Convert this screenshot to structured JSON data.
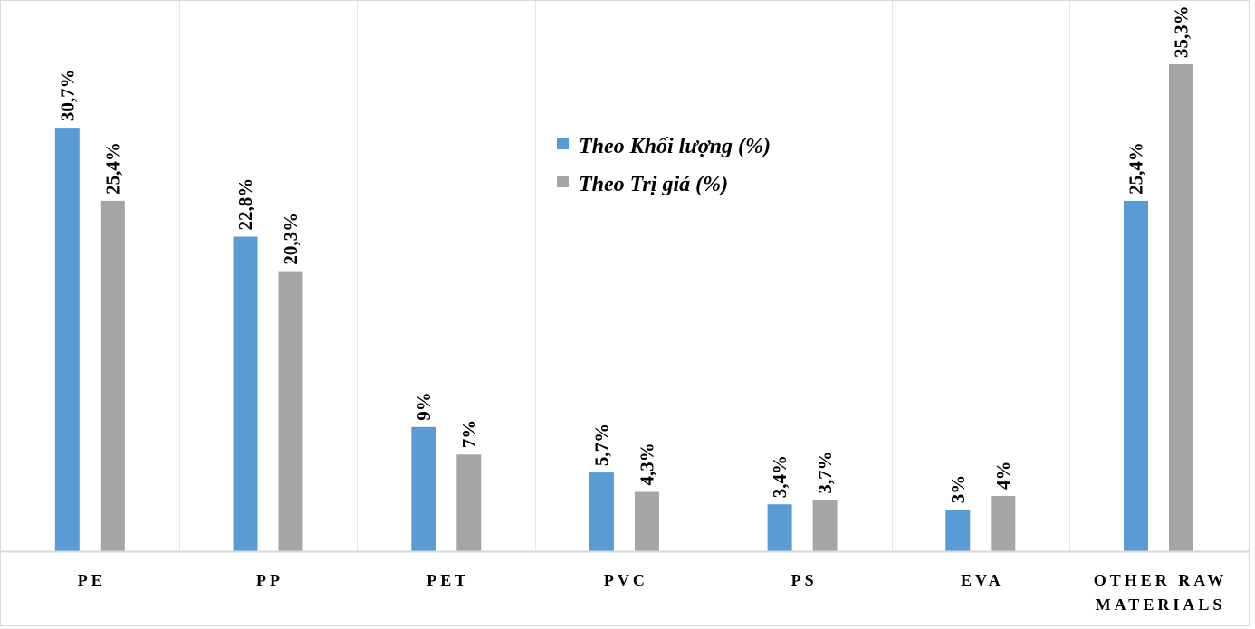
{
  "chart_data": {
    "type": "bar",
    "title": "",
    "xlabel": "",
    "ylabel": "",
    "ylim": [
      0,
      40
    ],
    "grid": "vertical category separators",
    "legend_position": "top-center",
    "categories": [
      "PE",
      "PP",
      "PET",
      "PVC",
      "PS",
      "EVA",
      "OTHER RAW MATERIALS"
    ],
    "category_lines": [
      [
        "PE"
      ],
      [
        "PP"
      ],
      [
        "PET"
      ],
      [
        "PVC"
      ],
      [
        "PS"
      ],
      [
        "EVA"
      ],
      [
        "OTHER RAW",
        "MATERIALS"
      ]
    ],
    "series": [
      {
        "name": "Theo Khối lượng (%)",
        "color": "#5b9bd5",
        "values": [
          30.7,
          22.8,
          9,
          5.7,
          3.4,
          3,
          25.4
        ],
        "labels": [
          "30,7%",
          "22,8%",
          "9%",
          "5,7%",
          "3,4%",
          "3%",
          "25,4%"
        ]
      },
      {
        "name": "Theo Trị giá (%)",
        "color": "#a5a5a5",
        "values": [
          25.4,
          20.3,
          7,
          4.3,
          3.7,
          4,
          35.3
        ],
        "labels": [
          "25,4%",
          "20,3%",
          "7%",
          "4,3%",
          "3,7%",
          "4%",
          "35,3%"
        ]
      }
    ]
  },
  "colors": {
    "grid": "#e6e6e6",
    "axis": "#d9d9d9"
  }
}
